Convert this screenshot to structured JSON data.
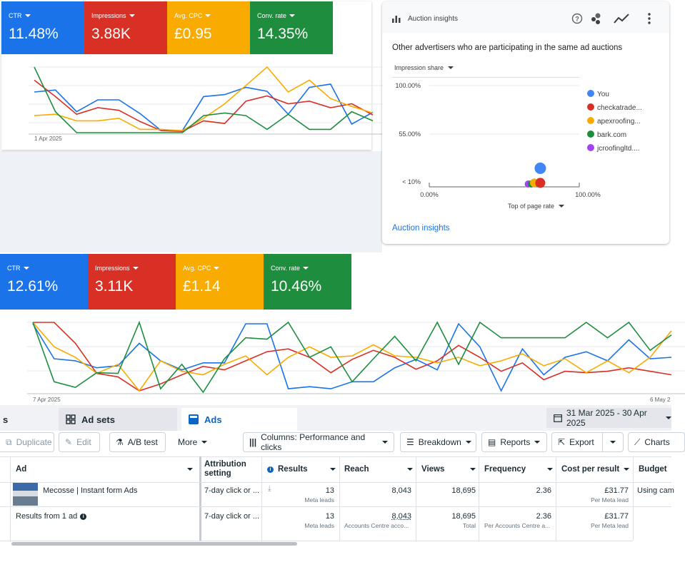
{
  "colors": {
    "blue": "#1a73e8",
    "red": "#d93025",
    "yellow": "#f9ab00",
    "green": "#1e8e3e",
    "purple": "#a142f4",
    "fb_blue": "#0a66c2"
  },
  "top_chart": {
    "metrics": [
      {
        "label": "CTR",
        "value": "11.48%",
        "color": "#1a73e8"
      },
      {
        "label": "Impressions",
        "value": "3.88K",
        "color": "#d93025"
      },
      {
        "label": "Avg. CPC",
        "value": "£0.95",
        "color": "#f9ab00"
      },
      {
        "label": "Conv. rate",
        "value": "14.35%",
        "color": "#1e8e3e"
      }
    ],
    "x_start_label": "1 Apr 2025",
    "chart_data": {
      "type": "line",
      "x_start": "1 Apr 2025",
      "series": [
        {
          "name": "CTR",
          "color": "#1a73e8",
          "values": [
            0.38,
            0.35,
            0.68,
            0.5,
            0.5,
            0.71,
            0.97,
            0.97,
            0.45,
            0.42,
            0.31,
            0.37,
            0.72,
            0.31,
            0.26,
            0.87,
            0.69
          ]
        },
        {
          "name": "Impressions",
          "color": "#d93025",
          "values": [
            0.2,
            0.45,
            0.72,
            0.62,
            0.66,
            0.83,
            0.97,
            0.98,
            0.82,
            0.86,
            0.52,
            0.44,
            0.56,
            0.52,
            0.62,
            0.56,
            0.73
          ]
        },
        {
          "name": "Avg. CPC",
          "color": "#f9ab00",
          "values": [
            0.74,
            0.72,
            0.82,
            0.82,
            0.78,
            0.95,
            0.95,
            0.97,
            0.78,
            0.56,
            0.28,
            0.0,
            0.38,
            0.2,
            0.48,
            0.6,
            0.7
          ]
        },
        {
          "name": "Conv. rate",
          "color": "#1e8e3e",
          "values": [
            0.0,
            0.68,
            1.0,
            1.0,
            1.0,
            1.0,
            1.0,
            1.0,
            0.74,
            0.7,
            0.74,
            0.95,
            0.72,
            0.95,
            0.95,
            0.68,
            0.82
          ]
        }
      ]
    }
  },
  "auction": {
    "title": "Auction insights",
    "heading": "Other advertisers who are participating in the same ad auctions",
    "y_selector": "Impression share",
    "x_selector": "Top of page rate",
    "y_ticks": [
      "100.00%",
      "55.00%",
      "< 10%"
    ],
    "x_ticks": [
      "0.00%",
      "100.00%"
    ],
    "link": "Auction insights",
    "chart_data": {
      "type": "scatter",
      "xlabel": "Top of page rate",
      "ylabel": "Impression share",
      "xlim": [
        0,
        100
      ],
      "ylim": [
        10,
        100
      ],
      "series": [
        {
          "name": "You",
          "color": "#4285f4",
          "x": [
            74
          ],
          "y": [
            24
          ],
          "r": 8
        },
        {
          "name": "checkatrade...",
          "color": "#d93025",
          "x": [
            74
          ],
          "y": [
            11
          ],
          "r": 7
        },
        {
          "name": "apexroofing...",
          "color": "#f9ab00",
          "x": [
            70
          ],
          "y": [
            11
          ],
          "r": 6
        },
        {
          "name": "bark.com",
          "color": "#1e8e3e",
          "x": [
            68
          ],
          "y": [
            10
          ],
          "r": 5
        },
        {
          "name": "jcroofingltd....",
          "color": "#a142f4",
          "x": [
            66
          ],
          "y": [
            10
          ],
          "r": 5
        }
      ]
    }
  },
  "mid_chart": {
    "metrics": [
      {
        "label": "CTR",
        "value": "12.61%",
        "color": "#1a73e8"
      },
      {
        "label": "Impressions",
        "value": "3.11K",
        "color": "#d93025"
      },
      {
        "label": "Avg. CPC",
        "value": "£1.14",
        "color": "#f9ab00"
      },
      {
        "label": "Conv. rate",
        "value": "10.46%",
        "color": "#1e8e3e"
      }
    ],
    "x_start_label": "7 Apr 2025",
    "x_end_label": "6 May 2",
    "chart_data": {
      "type": "line",
      "x_start": "7 Apr 2025",
      "x_end": "6 May 2025",
      "series": [
        {
          "name": "CTR",
          "color": "#1a73e8",
          "values": [
            0.02,
            0.52,
            0.55,
            0.65,
            0.62,
            0.3,
            0.55,
            0.68,
            0.58,
            0.58,
            0.02,
            0.02,
            0.95,
            0.92,
            0.95,
            0.85,
            0.85,
            0.65,
            0.53,
            0.68,
            0.02,
            0.35,
            0.98,
            0.38,
            0.75,
            0.5,
            0.42,
            0.55,
            0.25,
            0.52,
            0.5
          ]
        },
        {
          "name": "Impressions",
          "color": "#d93025",
          "values": [
            0.0,
            0.0,
            0.3,
            0.73,
            0.78,
            0.98,
            0.88,
            0.75,
            0.63,
            0.68,
            0.55,
            0.42,
            0.38,
            0.5,
            0.72,
            0.53,
            0.4,
            0.5,
            0.67,
            0.55,
            0.33,
            0.5,
            0.7,
            0.58,
            0.82,
            0.7,
            0.72,
            0.7,
            0.65,
            0.7,
            0.75
          ]
        },
        {
          "name": "Avg. CPC",
          "color": "#f9ab00",
          "values": [
            0.0,
            0.35,
            0.5,
            0.73,
            0.6,
            0.98,
            0.55,
            0.7,
            0.75,
            0.6,
            0.48,
            0.75,
            0.5,
            0.35,
            0.5,
            0.48,
            0.32,
            0.48,
            0.5,
            0.58,
            0.5,
            0.62,
            0.55,
            0.45,
            0.62,
            0.52,
            0.72,
            0.55,
            0.72,
            0.5,
            0.12
          ]
        },
        {
          "name": "Conv. rate",
          "color": "#1e8e3e",
          "values": [
            0.0,
            0.85,
            0.93,
            0.72,
            0.73,
            0.0,
            0.95,
            0.6,
            1.0,
            0.52,
            0.22,
            0.24,
            0.0,
            0.5,
            0.35,
            0.85,
            0.52,
            0.2,
            0.55,
            0.0,
            0.6,
            0.0,
            0.22,
            0.22,
            0.22,
            0.22,
            0.0,
            0.22,
            0.0,
            0.4,
            0.18
          ]
        }
      ]
    }
  },
  "ads_manager": {
    "tabs": {
      "partial": "s",
      "adsets": "Ad sets",
      "ads": "Ads"
    },
    "date_range": "31 Mar 2025 - 30 Apr 2025",
    "toolbar": {
      "duplicate": "Duplicate",
      "edit": "Edit",
      "ab_test": "A/B test",
      "more": "More",
      "columns": "Columns: Performance and clicks",
      "breakdown": "Breakdown",
      "reports": "Reports",
      "export": "Export",
      "charts": "Charts"
    },
    "headers": {
      "ad": "Ad",
      "attribution": "Attribution setting",
      "results": "Results",
      "reach": "Reach",
      "views": "Views",
      "frequency": "Frequency",
      "cost": "Cost per result",
      "budget": "Budget"
    },
    "row": {
      "ad_name": "Mecosse | Instant form Ads",
      "attribution": "7-day click or ...",
      "results": "13",
      "results_sub": "Meta leads",
      "reach": "8,043",
      "views": "18,695",
      "frequency": "2.36",
      "cost": "£31.77",
      "cost_sub": "Per Meta lead",
      "budget": "Using cam"
    },
    "summary": {
      "label": "Results from 1 ad",
      "attribution": "7-day click or ...",
      "results": "13",
      "results_sub": "Meta leads",
      "reach": "8,043",
      "reach_sub": "Accounts Centre acco...",
      "views": "18,695",
      "views_sub": "Total",
      "frequency": "2.36",
      "frequency_sub": "Per Accounts Centre a...",
      "cost": "£31.77",
      "cost_sub": "Per Meta lead"
    }
  }
}
